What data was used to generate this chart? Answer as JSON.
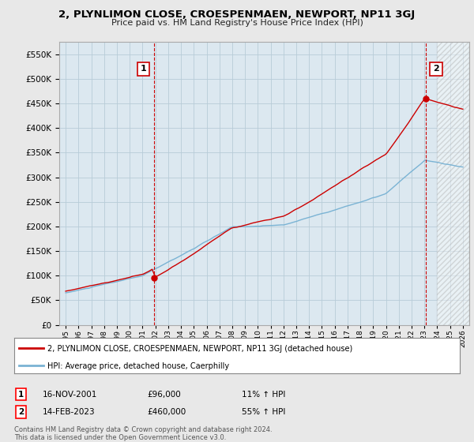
{
  "title": "2, PLYNLIMON CLOSE, CROESPENMAEN, NEWPORT, NP11 3GJ",
  "subtitle": "Price paid vs. HM Land Registry's House Price Index (HPI)",
  "hpi_color": "#7ab3d4",
  "price_color": "#cc0000",
  "dashed_color": "#cc0000",
  "background_color": "#e8e8e8",
  "plot_bg_color": "#dce8f0",
  "grid_color": "#b8ccd8",
  "sale1_date_num": 2001.88,
  "sale1_price": 96000,
  "sale1_label": "1",
  "sale1_date_str": "16-NOV-2001",
  "sale1_price_str": "£96,000",
  "sale1_hpi_str": "11% ↑ HPI",
  "sale2_date_num": 2023.12,
  "sale2_price": 460000,
  "sale2_label": "2",
  "sale2_date_str": "14-FEB-2023",
  "sale2_price_str": "£460,000",
  "sale2_hpi_str": "55% ↑ HPI",
  "legend_property": "2, PLYNLIMON CLOSE, CROESPENMAEN, NEWPORT, NP11 3GJ (detached house)",
  "legend_hpi": "HPI: Average price, detached house, Caerphilly",
  "footer1": "Contains HM Land Registry data © Crown copyright and database right 2024.",
  "footer2": "This data is licensed under the Open Government Licence v3.0.",
  "ylim_max": 575000,
  "ylim_min": 0,
  "xlim_min": 1994.5,
  "xlim_max": 2026.5
}
